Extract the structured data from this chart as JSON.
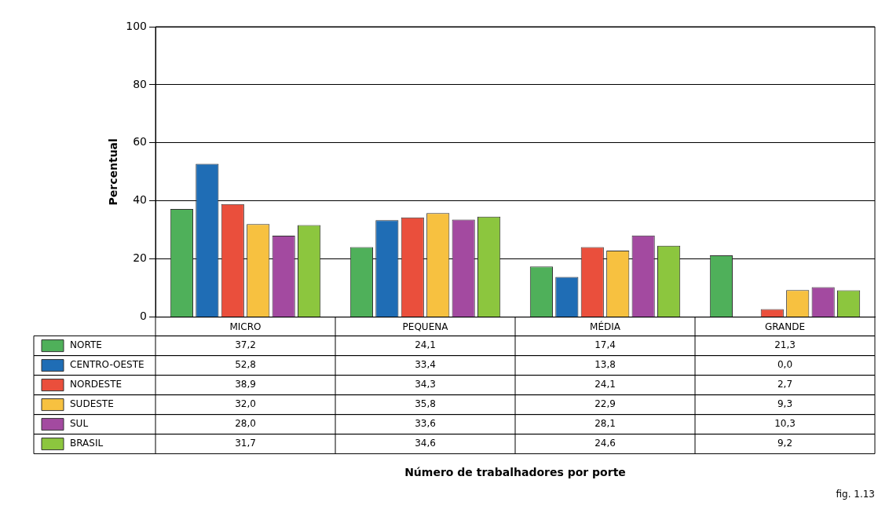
{
  "chart_data": {
    "type": "bar",
    "ylabel": "Percentual",
    "categories": [
      "MICRO",
      "PEQUENA",
      "MÉDIA",
      "GRANDE"
    ],
    "ylim": [
      0,
      100
    ],
    "yticks": [
      0,
      20,
      40,
      60,
      80,
      100
    ],
    "grid": "y",
    "legend": "bottom left",
    "annotations": [
      "Número de trabalhadores por porte",
      "fig. 1.13"
    ],
    "series": [
      {
        "name": "NORTE",
        "color": "#4fb05a",
        "values": [
          37.2,
          24.1,
          17.4,
          21.3
        ],
        "value_labels": [
          "37,2",
          "24,1",
          "17,4",
          "21,3"
        ]
      },
      {
        "name": "CENTRO-OESTE",
        "color": "#1f6db5",
        "values": [
          52.8,
          33.4,
          13.8,
          0.0
        ],
        "value_labels": [
          "52,8",
          "33,4",
          "13,8",
          "0,0"
        ]
      },
      {
        "name": "NORDESTE",
        "color": "#ea4f3c",
        "values": [
          38.9,
          34.3,
          24.1,
          2.7
        ],
        "value_labels": [
          "38,9",
          "34,3",
          "24,1",
          "2,7"
        ]
      },
      {
        "name": "SUDESTE",
        "color": "#f7c140",
        "values": [
          32.0,
          35.8,
          22.9,
          9.3
        ],
        "value_labels": [
          "32,0",
          "35,8",
          "22,9",
          "9,3"
        ]
      },
      {
        "name": "SUL",
        "color": "#a34aa0",
        "values": [
          28.0,
          33.6,
          28.1,
          10.3
        ],
        "value_labels": [
          "28,0",
          "33,6",
          "28,1",
          "10,3"
        ]
      },
      {
        "name": "BRASIL",
        "color": "#8cc63e",
        "values": [
          31.7,
          34.6,
          24.6,
          9.2
        ],
        "value_labels": [
          "31,7",
          "34,6",
          "24,6",
          "9,2"
        ]
      }
    ]
  }
}
